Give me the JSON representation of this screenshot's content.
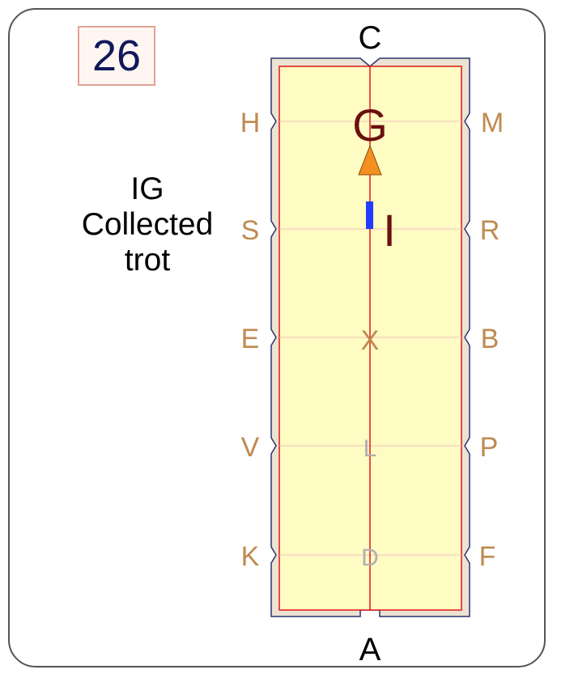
{
  "test_number": "26",
  "movement": {
    "line1": "IG",
    "line2": "Collected",
    "line3": "trot"
  },
  "arena": {
    "letters": {
      "top": "C",
      "bottom": "A",
      "left": [
        "H",
        "S",
        "E",
        "V",
        "K"
      ],
      "right": [
        "M",
        "R",
        "B",
        "P",
        "F"
      ],
      "centerline": [
        "G",
        "I",
        "X",
        "L",
        "D"
      ]
    }
  },
  "colors": {
    "arena_fill": "#fefbc3",
    "outer_border": "#ece3d2",
    "inner_line": "#e01818",
    "marker_letter": "#c08a50",
    "centerline_emphasis": "#6b0f0f",
    "faint_letter": "#b0b0b0",
    "arrow": "#f39020",
    "halt_marker": "#1f3cff"
  }
}
